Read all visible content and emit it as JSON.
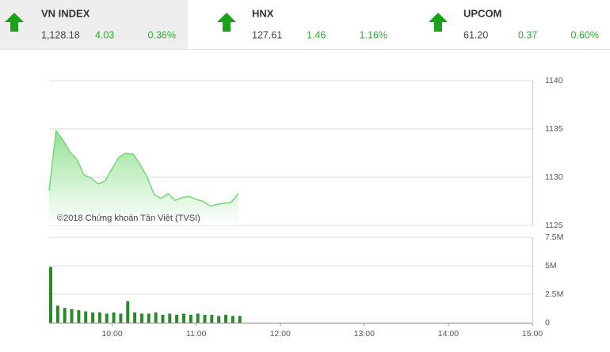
{
  "indices": [
    {
      "name": "VN INDEX",
      "value": "1,128.18",
      "change": "4.03",
      "percent": "0.36%"
    },
    {
      "name": "HNX",
      "value": "127.61",
      "change": "1.46",
      "percent": "1.16%"
    },
    {
      "name": "UPCOM",
      "value": "61.20",
      "change": "0.37",
      "percent": "0.60%"
    }
  ],
  "chart_data": [
    {
      "type": "area",
      "color": "#72d872",
      "annotation": "©2018 Chứng khoán Tân Việt (TVSI)",
      "x": [
        555,
        560,
        565,
        570,
        575,
        580,
        585,
        590,
        595,
        600,
        605,
        610,
        615,
        620,
        625,
        630,
        635,
        640,
        645,
        650,
        655,
        660,
        665,
        670,
        675,
        680,
        685,
        690
      ],
      "values": [
        1128.6,
        1134.8,
        1133.8,
        1132.6,
        1131.8,
        1130.2,
        1129.9,
        1129.3,
        1129.6,
        1130.9,
        1132.1,
        1132.5,
        1132.4,
        1131.3,
        1130.0,
        1128.2,
        1127.8,
        1128.3,
        1127.6,
        1127.9,
        1128.0,
        1127.7,
        1127.5,
        1127.0,
        1127.2,
        1127.3,
        1127.4,
        1128.3
      ],
      "xlim": [
        555,
        900
      ],
      "ylim": [
        1125,
        1140
      ],
      "yticks": [
        1125,
        1130,
        1135,
        1140
      ],
      "grid": true
    },
    {
      "type": "bar",
      "color": "#2a8a2a",
      "x": [
        555,
        560,
        565,
        570,
        575,
        580,
        585,
        590,
        595,
        600,
        605,
        610,
        615,
        620,
        625,
        630,
        635,
        640,
        645,
        650,
        655,
        660,
        665,
        670,
        675,
        680,
        685,
        690
      ],
      "values": [
        4900000,
        1500000,
        1300000,
        1200000,
        1100000,
        1000000,
        900000,
        900000,
        800000,
        900000,
        800000,
        1900000,
        900000,
        800000,
        800000,
        900000,
        700000,
        800000,
        700000,
        800000,
        700000,
        800000,
        700000,
        700000,
        600000,
        700000,
        600000,
        600000
      ],
      "xlim": [
        555,
        900
      ],
      "ylim": [
        0,
        7500000
      ],
      "yticks": [
        0,
        {
          "value": 2500000,
          "label": "2.5M"
        },
        {
          "value": 5000000,
          "label": "5M"
        },
        {
          "value": 7500000,
          "label": "7.5M"
        }
      ],
      "xticks": [
        {
          "value": 600,
          "label": "10:00"
        },
        {
          "value": 660,
          "label": "11:00"
        },
        {
          "value": 720,
          "label": "12:00"
        },
        {
          "value": 780,
          "label": "13:00"
        },
        {
          "value": 840,
          "label": "14:00"
        },
        {
          "value": 900,
          "label": "15:00"
        }
      ],
      "grid": true
    }
  ]
}
